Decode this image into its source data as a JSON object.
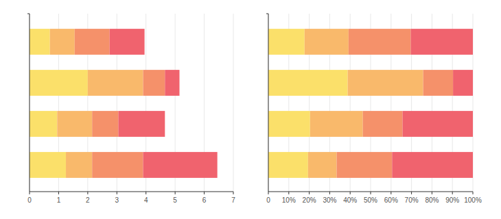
{
  "chart_data": [
    {
      "type": "bar",
      "orientation": "horizontal",
      "stacked": true,
      "grid": true,
      "categories": [
        null,
        null,
        null,
        null
      ],
      "xlim": [
        0,
        7
      ],
      "xticks": [
        0,
        1,
        2,
        3,
        4,
        5,
        6,
        7
      ],
      "series": [
        {
          "color": "#fbe06a",
          "values": [
            0.7,
            2.0,
            0.95,
            1.25
          ]
        },
        {
          "color": "#f9b96b",
          "values": [
            0.85,
            1.9,
            1.2,
            0.9
          ]
        },
        {
          "color": "#f5916a",
          "values": [
            1.2,
            0.75,
            0.9,
            1.75
          ]
        },
        {
          "color": "#f0636e",
          "values": [
            1.2,
            0.5,
            1.6,
            2.55
          ]
        }
      ]
    },
    {
      "type": "bar",
      "orientation": "horizontal",
      "stacked": true,
      "grid": true,
      "categories": [
        null,
        null,
        null,
        null
      ],
      "xlim": [
        0,
        100
      ],
      "xticks": [
        0,
        {
          "value": 10,
          "label": "10%"
        },
        {
          "value": 20,
          "label": "20%"
        },
        {
          "value": 30,
          "label": "30%"
        },
        {
          "value": 40,
          "label": "40%"
        },
        {
          "value": 50,
          "label": "50%"
        },
        {
          "value": 60,
          "label": "60%"
        },
        {
          "value": 70,
          "label": "70%"
        },
        {
          "value": 80,
          "label": "80%"
        },
        {
          "value": 90,
          "label": "90%"
        },
        {
          "value": 100,
          "label": "100%"
        }
      ],
      "series": [
        {
          "color": "#fbe06a",
          "values": [
            17.7,
            38.8,
            20.4,
            19.4
          ]
        },
        {
          "color": "#f9b96b",
          "values": [
            21.5,
            36.9,
            25.8,
            14.0
          ]
        },
        {
          "color": "#f5916a",
          "values": [
            30.4,
            14.6,
            19.4,
            27.1
          ]
        },
        {
          "color": "#f0636e",
          "values": [
            30.4,
            9.7,
            34.4,
            39.5
          ]
        }
      ]
    }
  ]
}
